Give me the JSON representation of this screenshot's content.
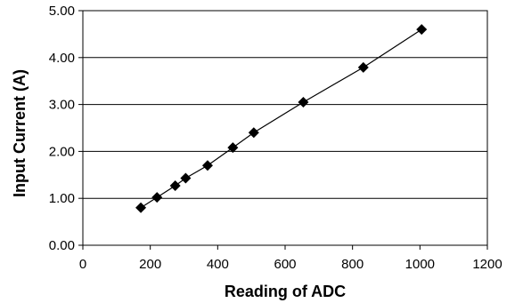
{
  "chart_data": {
    "type": "scatter",
    "title": "",
    "xlabel": "Reading of ADC",
    "ylabel": "Input Current (A)",
    "xlim": [
      0,
      1200
    ],
    "ylim": [
      0,
      5
    ],
    "x_ticks": [
      0,
      200,
      400,
      600,
      800,
      1000,
      1200
    ],
    "y_ticks": [
      0,
      1,
      2,
      3,
      4,
      5
    ],
    "x_tick_labels": [
      "0",
      "200",
      "400",
      "600",
      "800",
      "1000",
      "1200"
    ],
    "y_tick_labels": [
      "0.00",
      "1.00",
      "2.00",
      "3.00",
      "4.00",
      "5.00"
    ],
    "grid": "horizontal",
    "legend": "none",
    "marker": "diamond",
    "connect_points": true,
    "series": [
      {
        "x": [
          172,
          220,
          274,
          305,
          370,
          445,
          507,
          654,
          832,
          1005
        ],
        "y": [
          0.8,
          1.02,
          1.27,
          1.43,
          1.7,
          2.08,
          2.4,
          3.05,
          3.79,
          4.6
        ]
      }
    ],
    "colors": {
      "marker": "#000000",
      "line": "#000000",
      "grid": "#000000",
      "background": "#ffffff"
    }
  }
}
